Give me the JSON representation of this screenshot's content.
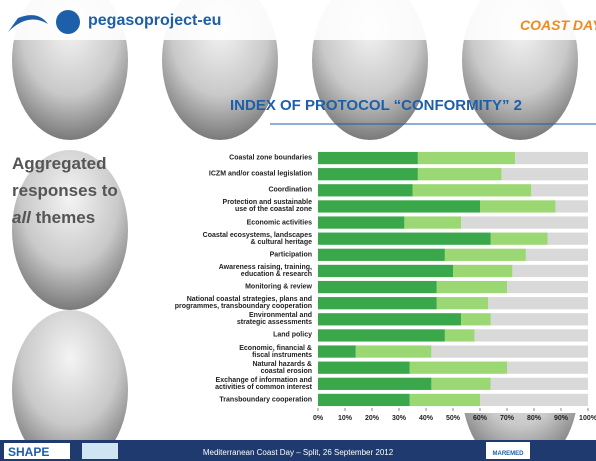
{
  "slide": {
    "logo": "pegasoproject-eu",
    "coast_day": "COAST DAY",
    "title": "INDEX OF PROTOCOL “CONFORMITY” 2",
    "side_text": [
      "Aggregated",
      "responses to",
      "all",
      "themes"
    ],
    "footer": "Mediterranean Coast Day – Split, 26 September 2012",
    "shape": "SHAPE",
    "maremed": "MAREMED"
  },
  "chart_data": {
    "type": "stacked-barh",
    "categories": [
      "Coastal zone boundaries",
      "ICZM and/or coastal legislation",
      "Coordination",
      "Protection and sustainable\nuse of the coastal zone",
      "Economic activities",
      "Coastal ecosystems, landscapes\n& cultural heritage",
      "Participation",
      "Awareness raising, training,\neducation & research",
      "Monitoring & review",
      "National coastal strategies, plans and\nprogrammes, transboundary cooperation",
      "Environmental and\nstrategic assessments",
      "Land policy",
      "Economic, financial &\nfiscal instruments",
      "Natural hazards &\ncoastal erosion",
      "Exchange of information and\nactivities of common interest",
      "Transboundary cooperation"
    ],
    "series": [
      {
        "color": "#3aa84a",
        "values": [
          37,
          37,
          35,
          60,
          32,
          64,
          47,
          50,
          44,
          44,
          53,
          47,
          14,
          34,
          42,
          34
        ]
      },
      {
        "color": "#9bd873",
        "values": [
          36,
          31,
          44,
          28,
          21,
          21,
          30,
          22,
          26,
          19,
          11,
          11,
          28,
          36,
          22,
          26
        ]
      },
      {
        "color": "#d9d9d9",
        "values": [
          27,
          32,
          21,
          12,
          47,
          15,
          23,
          28,
          30,
          37,
          36,
          42,
          58,
          30,
          36,
          40
        ]
      }
    ],
    "xlim": [
      0,
      100
    ],
    "xticks": [
      {
        "value": 0,
        "label": "0%"
      },
      {
        "value": 10,
        "label": "10%"
      },
      {
        "value": 20,
        "label": "20%"
      },
      {
        "value": 30,
        "label": "30%"
      },
      {
        "value": 40,
        "label": "40%"
      },
      {
        "value": 50,
        "label": "50%"
      },
      {
        "value": 60,
        "label": "60%"
      },
      {
        "value": 70,
        "label": "70%"
      },
      {
        "value": 80,
        "label": "80%"
      },
      {
        "value": 90,
        "label": "90%"
      },
      {
        "value": 100,
        "label": "100%"
      }
    ]
  }
}
